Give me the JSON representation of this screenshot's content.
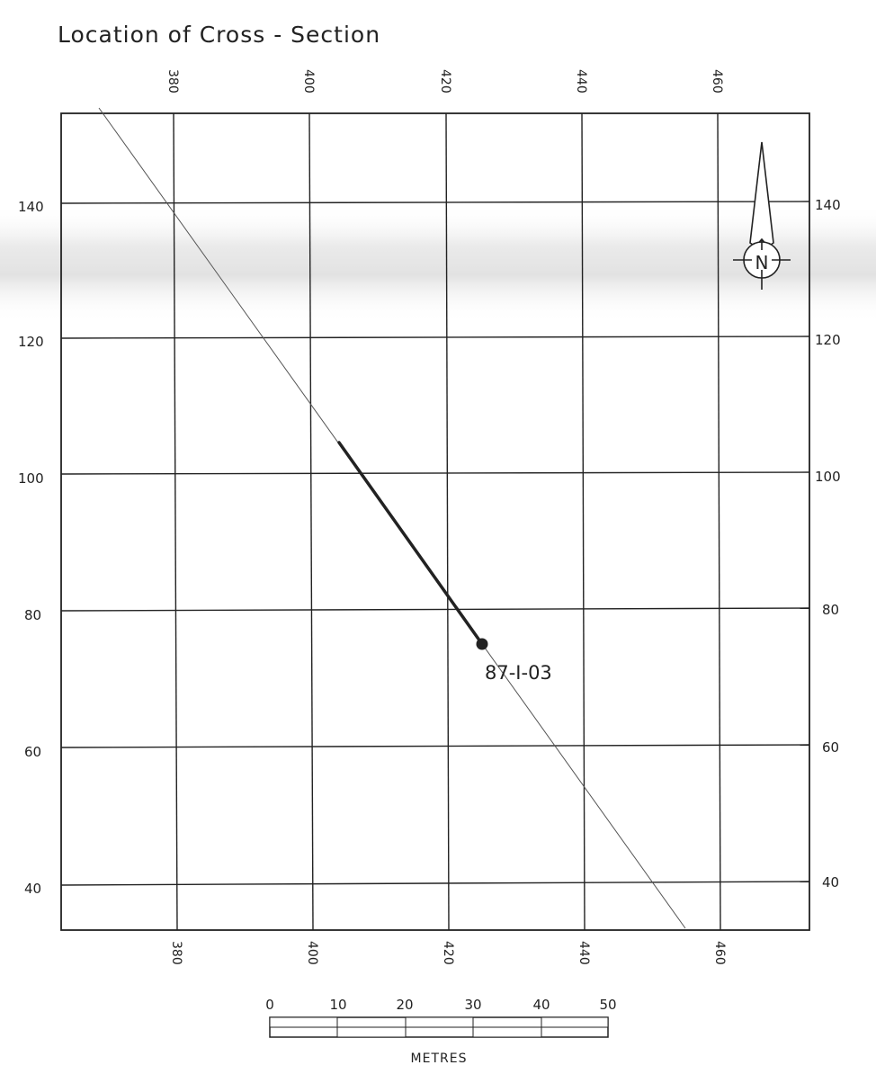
{
  "title": "Location of Cross - Section",
  "map": {
    "x_ticks": [
      "380",
      "400",
      "420",
      "440",
      "460"
    ],
    "y_ticks": [
      "140",
      "120",
      "100",
      "80",
      "60",
      "40"
    ],
    "borehole_label": "87-I-03",
    "north_arrow_letter": "N",
    "north_arrow_icon": "north-arrow-icon"
  },
  "scale_bar": {
    "labels": [
      "0",
      "10",
      "20",
      "30",
      "40",
      "50"
    ],
    "unit": "METRES"
  },
  "colors": {
    "ink": "#222222",
    "paper": "#ffffff",
    "fold_shade": "#e9e9e9"
  }
}
